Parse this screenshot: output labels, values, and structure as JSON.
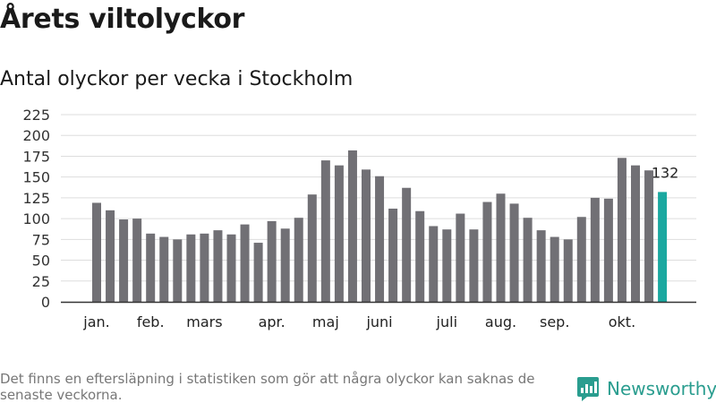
{
  "title": "Årets viltolyckor",
  "subtitle": "Antal olyckor per vecka i Stockholm",
  "footnote": "Det finns en eftersläpning i statistiken som gör att några olyckor kan saknas de senaste veckorna.",
  "brand": {
    "name": "Newsworthy",
    "color": "#2a9d8f"
  },
  "colors": {
    "bar": "#717075",
    "highlight": "#1aa8a0",
    "grid": "#dddddd",
    "axis": "#333333"
  },
  "chart_data": {
    "type": "bar",
    "title": "Antal olyckor per vecka i Stockholm",
    "xlabel": "",
    "ylabel": "",
    "ylim": [
      0,
      225
    ],
    "yticks": [
      0,
      25,
      50,
      75,
      100,
      125,
      150,
      175,
      200,
      225
    ],
    "month_labels": [
      {
        "label": "jan.",
        "index": 0
      },
      {
        "label": "feb.",
        "index": 4
      },
      {
        "label": "mars",
        "index": 8
      },
      {
        "label": "apr.",
        "index": 13
      },
      {
        "label": "maj",
        "index": 17
      },
      {
        "label": "juni",
        "index": 21
      },
      {
        "label": "juli",
        "index": 26
      },
      {
        "label": "aug.",
        "index": 30
      },
      {
        "label": "sep.",
        "index": 34
      },
      {
        "label": "okt.",
        "index": 39
      }
    ],
    "values": [
      119,
      110,
      99,
      100,
      82,
      78,
      75,
      81,
      82,
      86,
      81,
      93,
      71,
      97,
      88,
      101,
      129,
      170,
      164,
      182,
      159,
      151,
      112,
      137,
      109,
      91,
      87,
      106,
      87,
      120,
      130,
      118,
      101,
      86,
      78,
      75,
      102,
      125,
      124,
      173,
      164,
      158,
      132
    ],
    "highlight_index": 42,
    "highlight_label": "132"
  }
}
